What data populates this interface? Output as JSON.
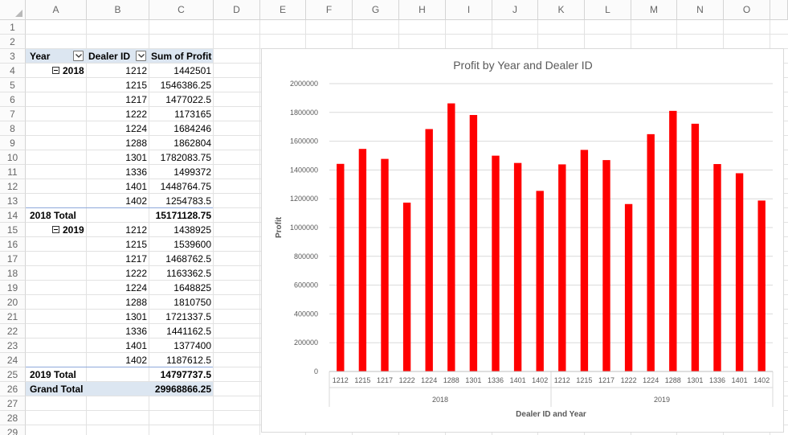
{
  "columns": [
    "A",
    "B",
    "C",
    "D",
    "E",
    "F",
    "G",
    "H",
    "I",
    "J",
    "K",
    "L",
    "M",
    "N",
    "O"
  ],
  "rows": [
    "1",
    "2",
    "3",
    "4",
    "5",
    "6",
    "7",
    "8",
    "9",
    "10",
    "11",
    "12",
    "13",
    "14",
    "15",
    "16",
    "17",
    "18",
    "19",
    "20",
    "21",
    "22",
    "23",
    "24",
    "25",
    "26",
    "27",
    "28",
    "29"
  ],
  "pivot": {
    "header": {
      "year": "Year",
      "dealer": "Dealer ID",
      "profit": "Sum of Profit"
    },
    "groups": [
      {
        "year": "2018",
        "rows": [
          {
            "dealer": "1212",
            "profit": "1442501"
          },
          {
            "dealer": "1215",
            "profit": "1546386.25"
          },
          {
            "dealer": "1217",
            "profit": "1477022.5"
          },
          {
            "dealer": "1222",
            "profit": "1173165"
          },
          {
            "dealer": "1224",
            "profit": "1684246"
          },
          {
            "dealer": "1288",
            "profit": "1862804"
          },
          {
            "dealer": "1301",
            "profit": "1782083.75"
          },
          {
            "dealer": "1336",
            "profit": "1499372"
          },
          {
            "dealer": "1401",
            "profit": "1448764.75"
          },
          {
            "dealer": "1402",
            "profit": "1254783.5"
          }
        ],
        "total_label": "2018 Total",
        "total": "15171128.75"
      },
      {
        "year": "2019",
        "rows": [
          {
            "dealer": "1212",
            "profit": "1438925"
          },
          {
            "dealer": "1215",
            "profit": "1539600"
          },
          {
            "dealer": "1217",
            "profit": "1468762.5"
          },
          {
            "dealer": "1222",
            "profit": "1163362.5"
          },
          {
            "dealer": "1224",
            "profit": "1648825"
          },
          {
            "dealer": "1288",
            "profit": "1810750"
          },
          {
            "dealer": "1301",
            "profit": "1721337.5"
          },
          {
            "dealer": "1336",
            "profit": "1441162.5"
          },
          {
            "dealer": "1401",
            "profit": "1377400"
          },
          {
            "dealer": "1402",
            "profit": "1187612.5"
          }
        ],
        "total_label": "2019 Total",
        "total": "14797737.5"
      }
    ],
    "grand_total_label": "Grand Total",
    "grand_total": "29968866.25"
  },
  "colors": {
    "bar": "#ff0000",
    "header_band": "#dce6f1",
    "gridline": "#d9d9d9"
  },
  "chart_data": {
    "type": "bar",
    "title": "Profit by Year and Dealer ID",
    "xlabel": "Dealer ID and Year",
    "ylabel": "Profit",
    "ylim": [
      0,
      2000000
    ],
    "yticks": [
      "0",
      "200000",
      "400000",
      "600000",
      "800000",
      "1000000",
      "1200000",
      "1400000",
      "1600000",
      "1800000",
      "2000000"
    ],
    "grid": true,
    "groups": [
      {
        "name": "2018",
        "categories": [
          "1212",
          "1215",
          "1217",
          "1222",
          "1224",
          "1288",
          "1301",
          "1336",
          "1401",
          "1402"
        ],
        "values": [
          1442501,
          1546386.25,
          1477022.5,
          1173165,
          1684246,
          1862804,
          1782083.75,
          1499372,
          1448764.75,
          1254783.5
        ]
      },
      {
        "name": "2019",
        "categories": [
          "1212",
          "1215",
          "1217",
          "1222",
          "1224",
          "1288",
          "1301",
          "1336",
          "1401",
          "1402"
        ],
        "values": [
          1438925,
          1539600,
          1468762.5,
          1163362.5,
          1648825,
          1810750,
          1721337.5,
          1441162.5,
          1377400,
          1187612.5
        ]
      }
    ]
  }
}
